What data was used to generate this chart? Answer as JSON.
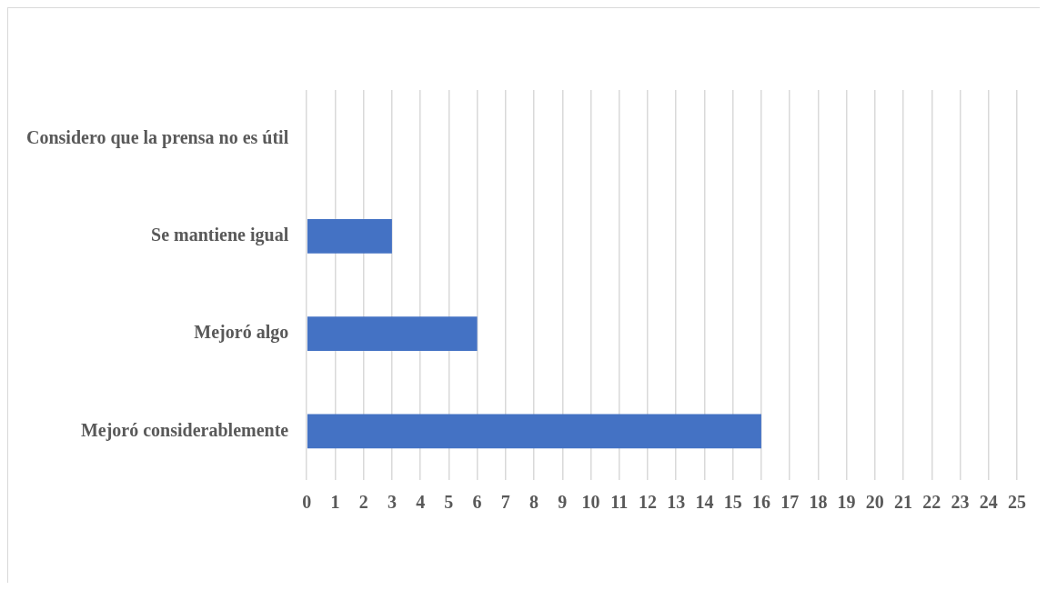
{
  "chart_data": {
    "type": "bar",
    "orientation": "horizontal",
    "categories": [
      "Considero que la prensa no es útil",
      "Se mantiene igual",
      "Mejoró algo",
      "Mejoró considerablemente"
    ],
    "values": [
      0,
      3,
      6,
      16
    ],
    "color": "#4472c4",
    "xlim": [
      0,
      25
    ],
    "xticks": [
      0,
      1,
      2,
      3,
      4,
      5,
      6,
      7,
      8,
      9,
      10,
      11,
      12,
      13,
      14,
      15,
      16,
      17,
      18,
      19,
      20,
      21,
      22,
      23,
      24,
      25
    ],
    "grid": "x"
  }
}
